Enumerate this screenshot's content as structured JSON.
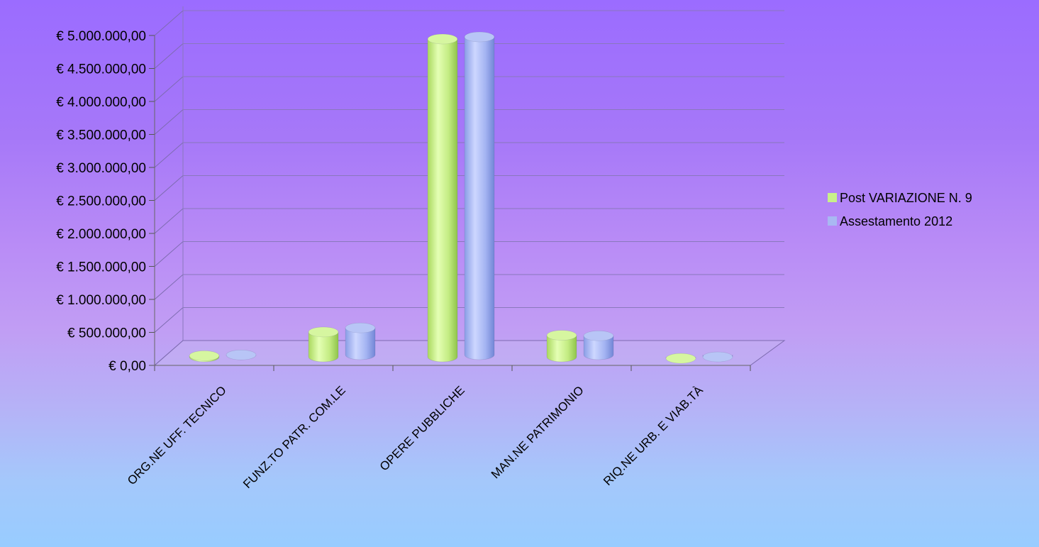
{
  "chart_data": {
    "type": "bar",
    "title": "",
    "xlabel": "",
    "ylabel": "",
    "categories": [
      "ORG.NE UFF. TECNICO",
      "FUNZ.TO PATR. COM.LE",
      "OPERE PUBBLICHE",
      "MAN.NE PATRIMONIO",
      "RIQ.NE URB. E VIAB.TÀ"
    ],
    "series": [
      {
        "name": "Post VARIAZIONE N. 9",
        "values": [
          60000,
          420000,
          4860000,
          370000,
          20000
        ]
      },
      {
        "name": "Assestamento 2012",
        "values": [
          40000,
          450000,
          4860000,
          330000,
          10000
        ]
      }
    ],
    "ylim": [
      0,
      5000000
    ],
    "yticks": [
      0,
      500000,
      1000000,
      1500000,
      2000000,
      2500000,
      3000000,
      3500000,
      4000000,
      4500000,
      5000000
    ],
    "ytick_labels": [
      "€ 0,00",
      "€ 500.000,00",
      "€ 1.000.000,00",
      "€ 1.500.000,00",
      "€ 2.000.000,00",
      "€ 2.500.000,00",
      "€ 3.000.000,00",
      "€ 3.500.000,00",
      "€ 4.000.000,00",
      "€ 4.500.000,00",
      "€ 5.000.000,00"
    ],
    "grid": true,
    "legend_position": "right",
    "style": "3d-cylinder",
    "colors": [
      "#c8f08a",
      "#a9b8f2"
    ]
  }
}
